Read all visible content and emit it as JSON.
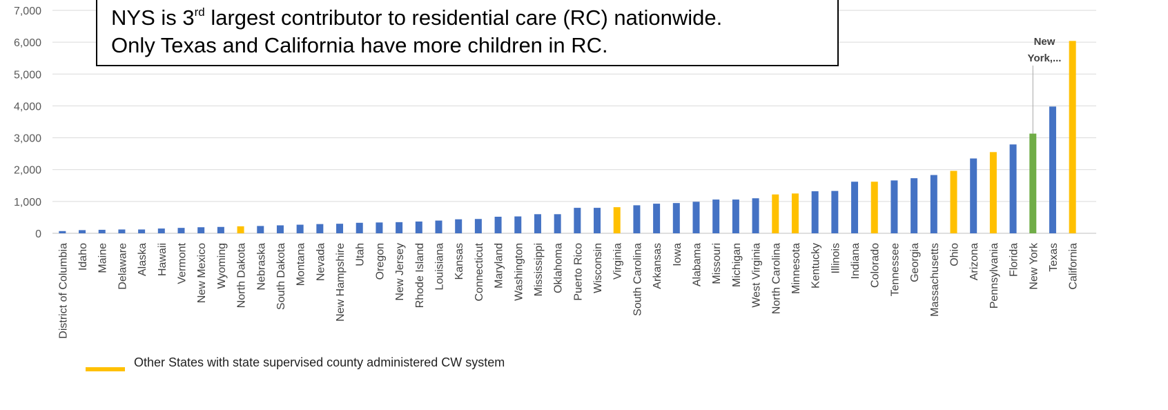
{
  "chart_data": {
    "type": "bar",
    "callout": {
      "line1_pre": "NYS is 3",
      "line1_sup": "rd",
      "line1_post": " largest contributor to residential care (RC) nationwide.",
      "line2": "Only Texas and California have more children in RC."
    },
    "y_ticks": [
      "0",
      "1,000",
      "2,000",
      "3,000",
      "4,000",
      "5,000",
      "6,000",
      "7,000"
    ],
    "ylim": [
      0,
      7000
    ],
    "grid": true,
    "colors": {
      "default": "#4472C4",
      "state_supervised": "#FFC000",
      "highlight": "#70AD47"
    },
    "data_label": {
      "category": "New York",
      "text_line1": "New",
      "text_line2": "York,..."
    },
    "legend": {
      "label": "Other States with state supervised county administered CW system",
      "color": "#FFC000",
      "position": "bottom-left"
    },
    "categories": [
      "District of Columbia",
      "Idaho",
      "Maine",
      "Delaware",
      "Alaska",
      "Hawaii",
      "Vermont",
      "New Mexico",
      "Wyoming",
      "North Dakota",
      "Nebraska",
      "South Dakota",
      "Montana",
      "Nevada",
      "New Hampshire",
      "Utah",
      "Oregon",
      "New Jersey",
      "Rhode Island",
      "Louisiana",
      "Kansas",
      "Connecticut",
      "Maryland",
      "Washington",
      "Mississippi",
      "Oklahoma",
      "Puerto Rico",
      "Wisconsin",
      "Virginia",
      "South Carolina",
      "Arkansas",
      "Iowa",
      "Alabama",
      "Missouri",
      "Michigan",
      "West Virginia",
      "North Carolina",
      "Minnesota",
      "Kentucky",
      "Illinois",
      "Indiana",
      "Colorado",
      "Tennessee",
      "Georgia",
      "Massachusetts",
      "Ohio",
      "Arizona",
      "Pennsylvania",
      "Florida",
      "New York",
      "Texas",
      "California"
    ],
    "values": [
      70,
      100,
      110,
      120,
      120,
      150,
      170,
      190,
      200,
      220,
      230,
      250,
      270,
      290,
      300,
      330,
      340,
      350,
      370,
      400,
      440,
      450,
      520,
      530,
      600,
      600,
      800,
      800,
      820,
      880,
      930,
      950,
      990,
      1060,
      1060,
      1100,
      1220,
      1250,
      1320,
      1330,
      1620,
      1620,
      1660,
      1730,
      1830,
      1960,
      2350,
      2550,
      2790,
      3130,
      3980,
      6040
    ],
    "series_type": [
      "default",
      "default",
      "default",
      "default",
      "default",
      "default",
      "default",
      "default",
      "default",
      "state_supervised",
      "default",
      "default",
      "default",
      "default",
      "default",
      "default",
      "default",
      "default",
      "default",
      "default",
      "default",
      "default",
      "default",
      "default",
      "default",
      "default",
      "default",
      "default",
      "state_supervised",
      "default",
      "default",
      "default",
      "default",
      "default",
      "default",
      "default",
      "state_supervised",
      "state_supervised",
      "default",
      "default",
      "default",
      "state_supervised",
      "default",
      "default",
      "default",
      "state_supervised",
      "default",
      "state_supervised",
      "default",
      "highlight",
      "default",
      "state_supervised"
    ]
  }
}
